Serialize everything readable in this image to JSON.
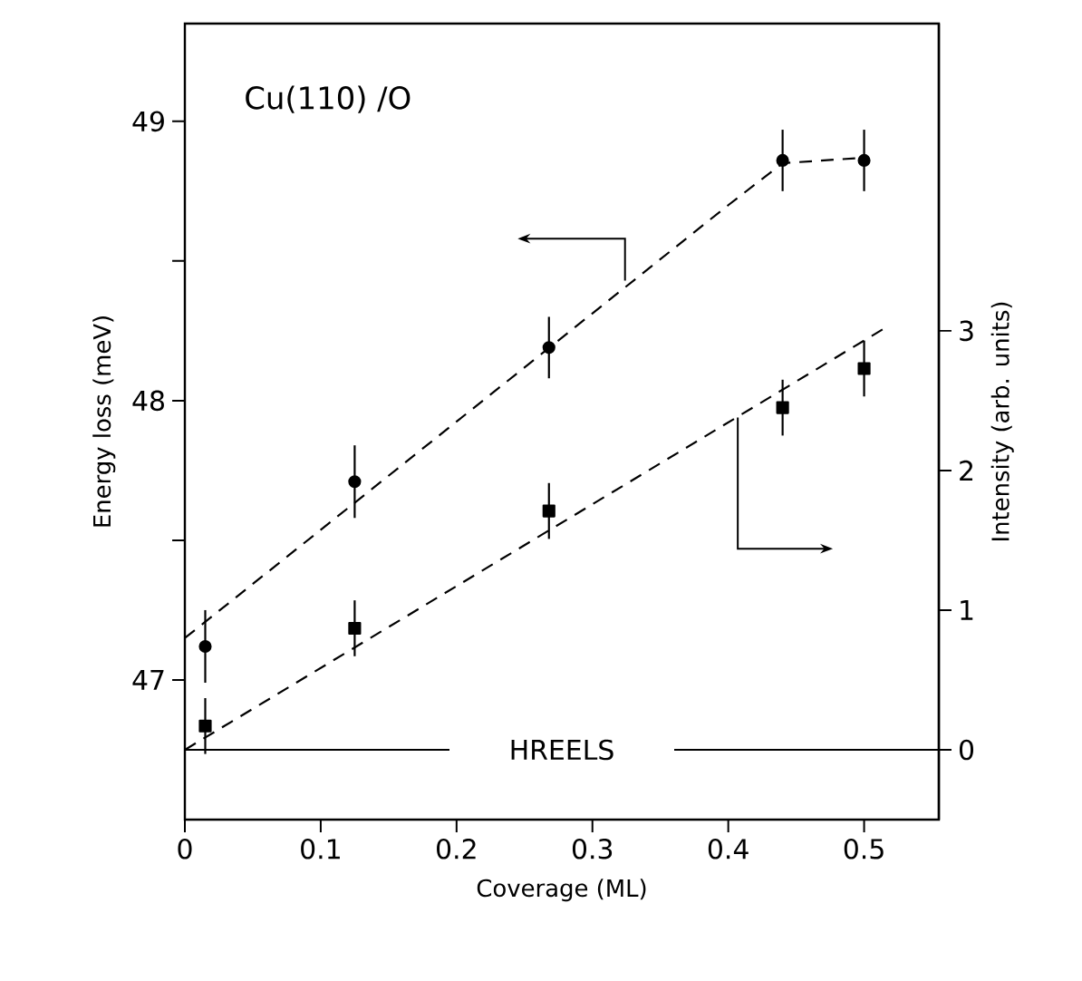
{
  "chart_data": {
    "type": "scatter",
    "xlabel": "Coverage (ML)",
    "ylabel": "Energy loss (meV)",
    "y2label": "Intensity (arb. units)",
    "annotations": [
      "Cu(110) /O"
    ],
    "xlim": [
      0,
      0.555
    ],
    "xticks": [
      0,
      0.1,
      0.2,
      0.3,
      0.4,
      0.5
    ],
    "ylim": [
      46.5,
      49.35
    ],
    "yticks": [
      47,
      {
        "value": 47.5,
        "label": null
      },
      48,
      {
        "value": 48.5,
        "label": null
      },
      49
    ],
    "y2lim": [
      -0.5,
      5.2
    ],
    "y2ticks": [
      0,
      1,
      2,
      3
    ],
    "ref_lines": [
      {
        "axis": "y2",
        "value": 0,
        "label": "HREELS"
      }
    ],
    "series": [
      {
        "marker": "circle",
        "color": "#000000",
        "x": [
          0.015,
          0.125,
          0.268,
          0.44,
          0.5
        ],
        "values": [
          47.12,
          47.71,
          48.19,
          48.86,
          48.86
        ],
        "errors": [
          0.13,
          0.13,
          0.11,
          0.11,
          0.11
        ]
      },
      {
        "type": "line",
        "line_style": "dashed",
        "color": "#000000",
        "x": [
          0,
          0.4,
          0.44,
          0.5
        ],
        "values": [
          47.15,
          48.7,
          48.85,
          48.87
        ]
      },
      {
        "axis": "y2",
        "marker": "square",
        "color": "#000000",
        "x": [
          0.015,
          0.125,
          0.268,
          0.44,
          0.5
        ],
        "values": [
          0.17,
          0.87,
          1.71,
          2.45,
          2.73
        ],
        "errors": [
          0.2,
          0.2,
          0.2,
          0.2,
          0.2
        ]
      },
      {
        "type": "line",
        "axis": "y2",
        "line_style": "dashed",
        "color": "#000000",
        "x": [
          0,
          0.517
        ],
        "values": [
          0.0,
          3.03
        ]
      }
    ]
  }
}
